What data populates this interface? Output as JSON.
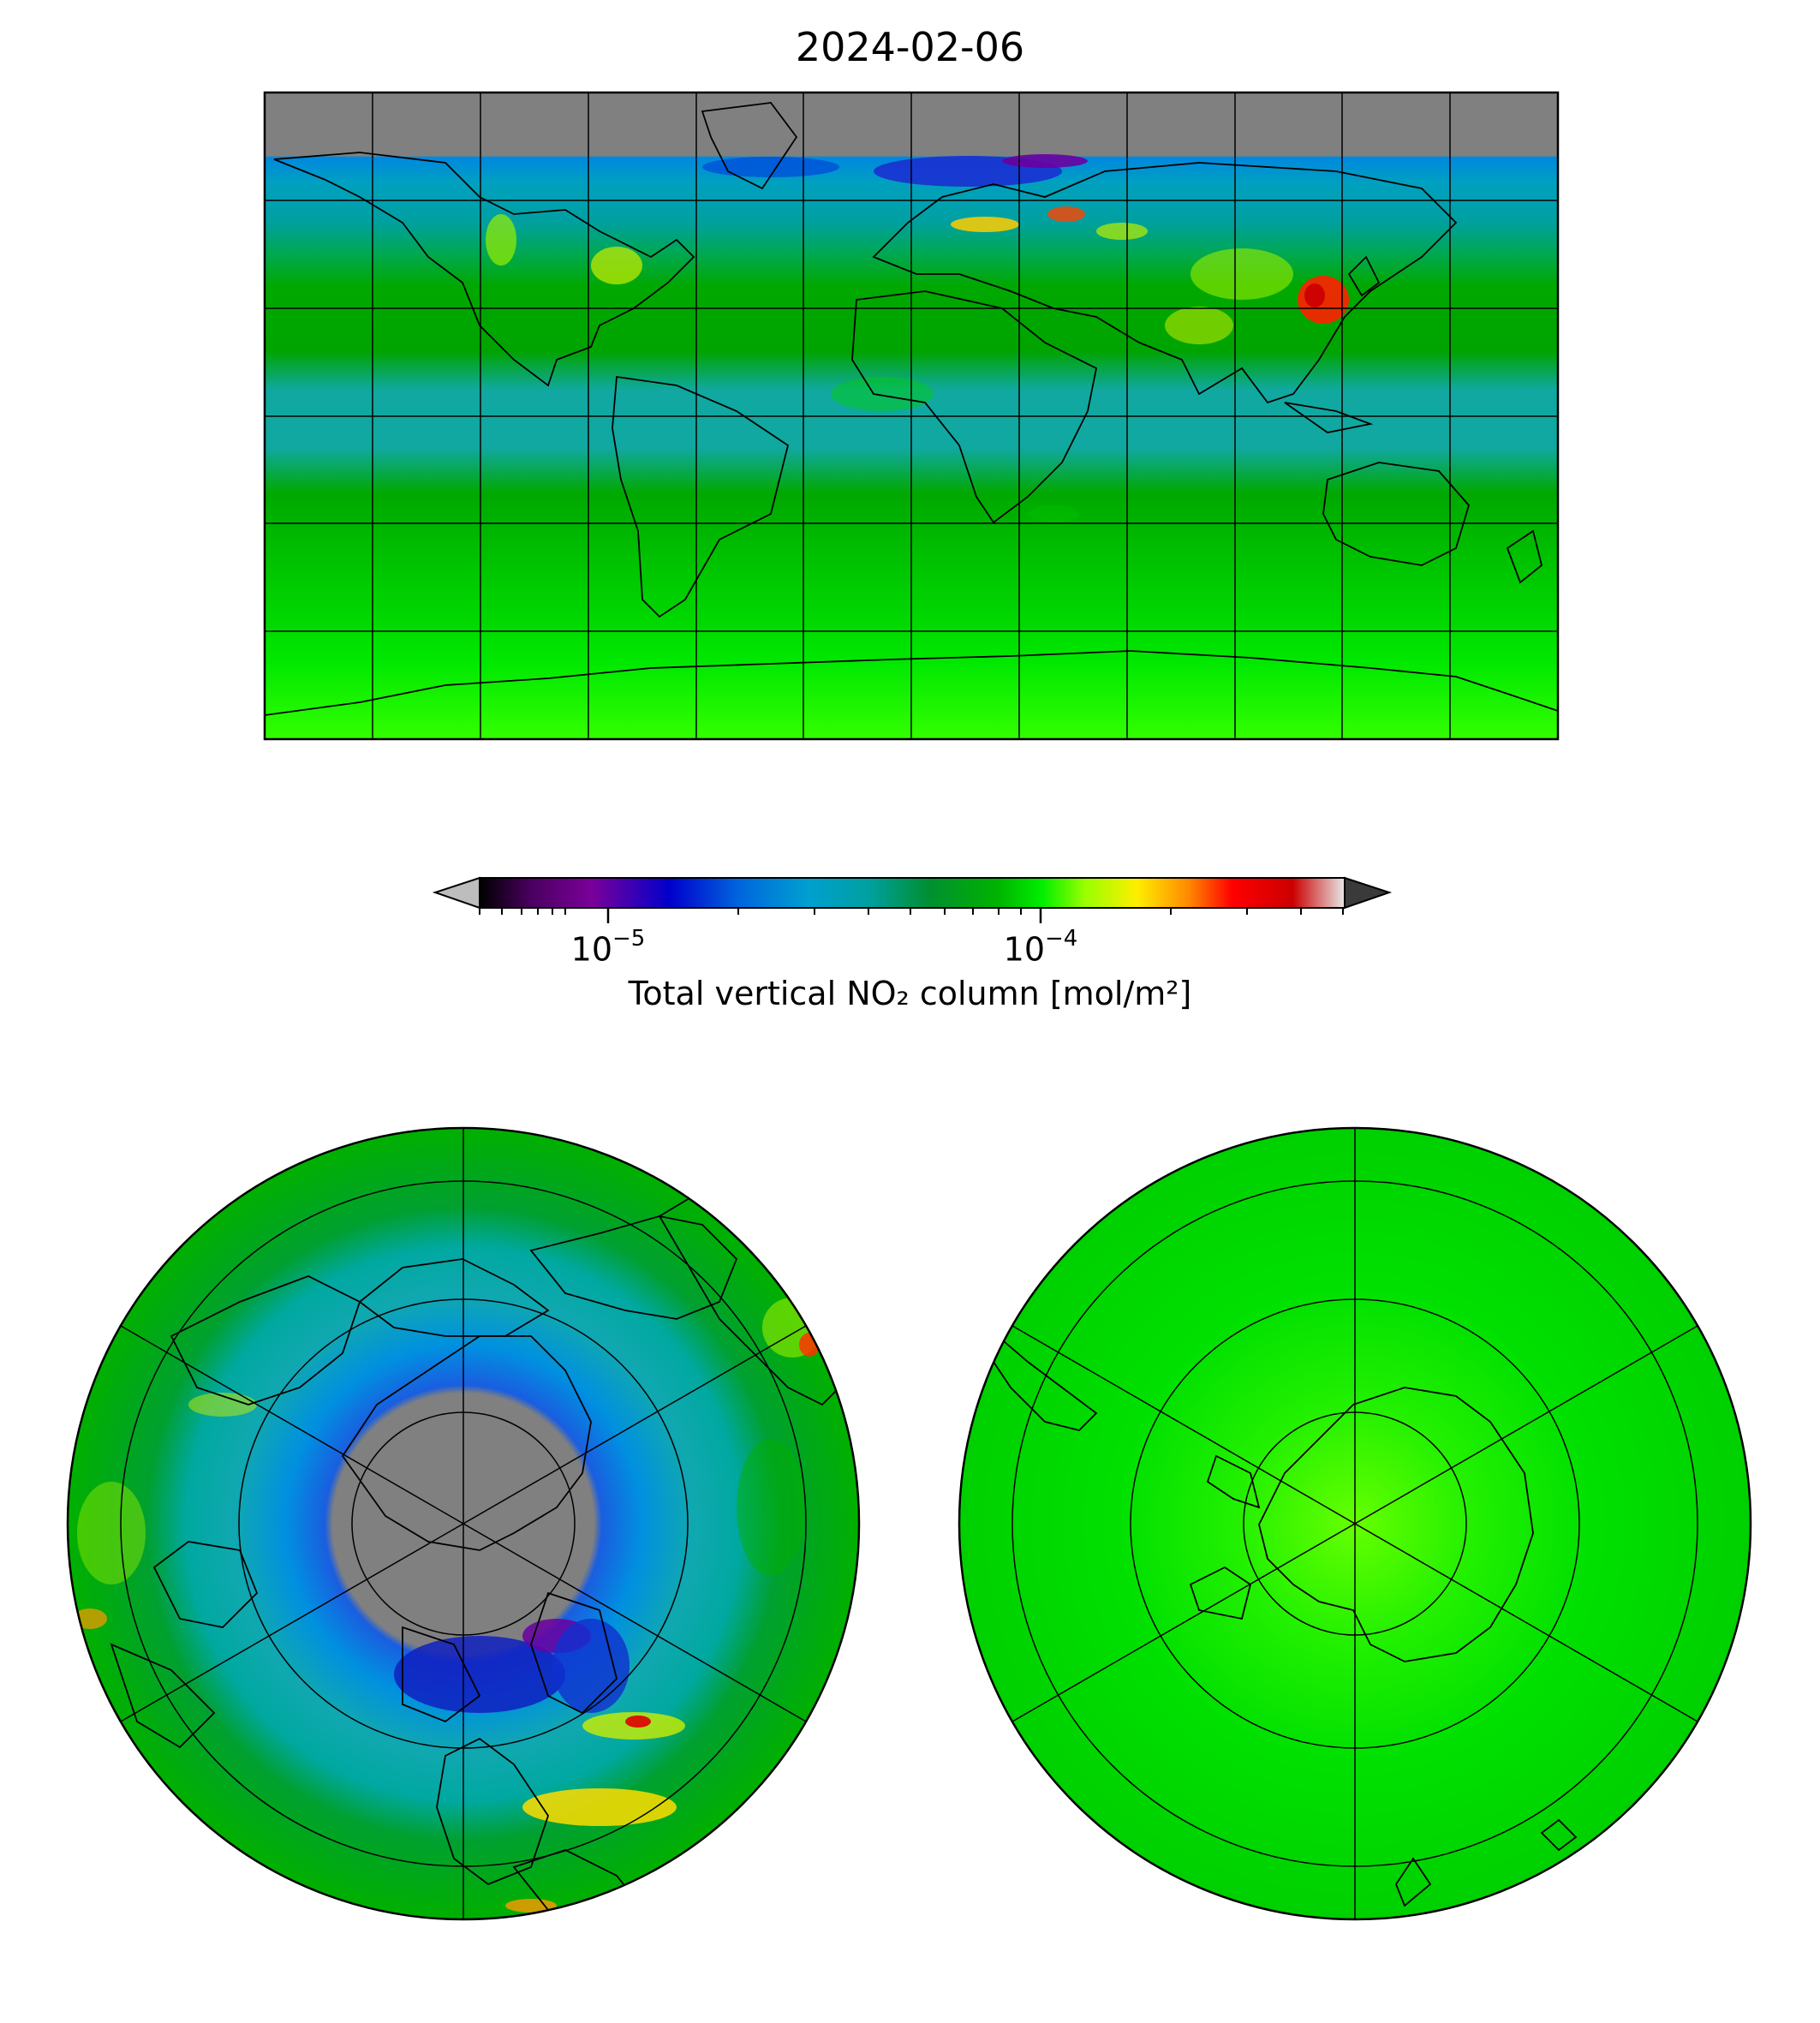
{
  "figure": {
    "title": "2024-02-06"
  },
  "colorbar": {
    "label": "Total vertical NO₂ column [mol/m²]",
    "scale": "log",
    "range": [
      5e-06,
      0.0005
    ],
    "major_ticks": [
      {
        "base": "10",
        "exp": "−5",
        "value": 1e-05
      },
      {
        "base": "10",
        "exp": "−4",
        "value": 0.0001
      }
    ],
    "extend": "both",
    "under_color": "#bdbdbd",
    "over_color": "#3a3a3a",
    "colors": [
      "#000000",
      "#7a0099",
      "#0000cc",
      "#0090e6",
      "#00a0a0",
      "#00aa00",
      "#00ee00",
      "#ffee00",
      "#ff8800",
      "#ff0000",
      "#cc0000",
      "#e0e0e0"
    ]
  },
  "maps": [
    {
      "name": "global-plate-carree",
      "projection": "PlateCarree",
      "gridlines": true,
      "coastlines": true
    },
    {
      "name": "north-polar-stereo",
      "projection": "NorthPolarStereo",
      "gridlines": true,
      "coastlines": true
    },
    {
      "name": "south-polar-stereo",
      "projection": "SouthPolarStereo",
      "gridlines": true,
      "coastlines": true
    }
  ],
  "legend_colors": {
    "no_data": "#808080",
    "background_field": "#00b400"
  }
}
